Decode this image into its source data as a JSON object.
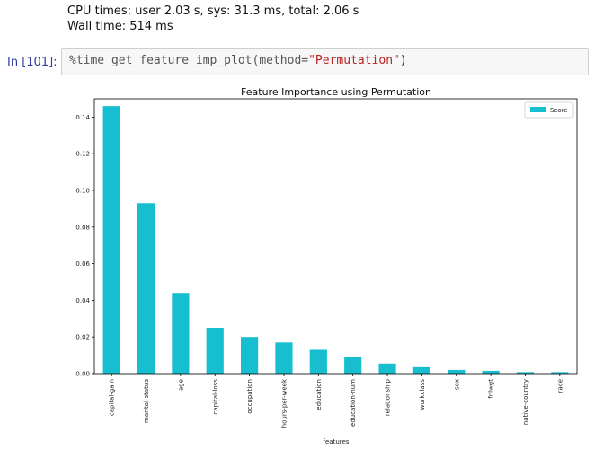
{
  "output": {
    "line1": "CPU times: user 2.03 s, sys: 31.3 ms, total: 2.06 s",
    "line2": "Wall time: 514 ms"
  },
  "cell": {
    "prompt": "In [101]:",
    "code_prefix": "%time get_feature_imp_plot(method=",
    "code_string": "\"Permutation\"",
    "code_suffix": ")"
  },
  "colors": {
    "bar": "#17becf",
    "string": "#ba2121",
    "prompt": "#303f9f"
  },
  "chart_data": {
    "type": "bar",
    "title": "Feature Importance using Permutation",
    "xlabel": "features",
    "ylabel": "",
    "categories": [
      "capital-gain",
      "marital-status",
      "age",
      "capital-loss",
      "occupation",
      "hours-per-week",
      "education",
      "education-num",
      "relationship",
      "workclass",
      "sex",
      "fnlwgt",
      "native-country",
      "race"
    ],
    "series": [
      {
        "name": "Score",
        "values": [
          0.146,
          0.093,
          0.044,
          0.025,
          0.02,
          0.017,
          0.013,
          0.009,
          0.0055,
          0.0035,
          0.002,
          0.0015,
          0.0008,
          0.0008
        ]
      }
    ],
    "ylim": [
      0,
      0.15
    ],
    "yticks": [
      "0.00",
      "0.02",
      "0.04",
      "0.06",
      "0.08",
      "0.10",
      "0.12",
      "0.14"
    ],
    "legend": "top-right",
    "grid": false
  }
}
